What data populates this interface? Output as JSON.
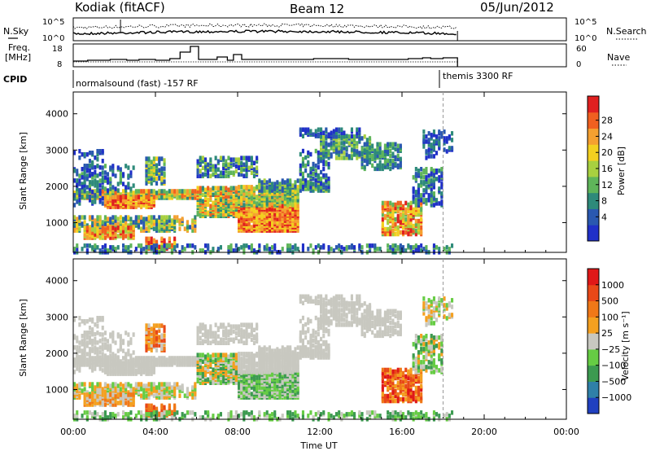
{
  "header": {
    "station": "Kodiak (fitACF)",
    "beam": "Beam 12",
    "date": "05/Jun/2012"
  },
  "side_labels": {
    "nsky": "N.Sky",
    "freq": "Freq.",
    "freq_unit": "[MHz]",
    "cpid": "CPID",
    "nsearch": "N.Search",
    "nave": "Nave"
  },
  "noise_panel": {
    "left_ticks": [
      "10^5",
      "10^0"
    ],
    "right_ticks": [
      "10^5",
      "10^0"
    ]
  },
  "freq_panel": {
    "left_ticks": [
      "18",
      "8"
    ],
    "right_ticks": [
      "60",
      "0"
    ]
  },
  "cpid_panel": {
    "segments": [
      {
        "label": "normalsound (fast) -157 RF",
        "start_hour": 0,
        "end_hour": 18.0
      },
      {
        "label": "themis 3300 RF",
        "start_hour": 18.0,
        "end_hour": 24
      }
    ]
  },
  "chart_data": [
    {
      "type": "heatmap",
      "name": "power",
      "ylabel": "Slant Range [km]",
      "ylim": [
        180,
        4600
      ],
      "yticks": [
        "1000",
        "2000",
        "3000",
        "4000"
      ],
      "xticks": [
        "00:00",
        "04:00",
        "08:00",
        "12:00",
        "16:00",
        "20:00",
        "00:00"
      ],
      "xlim_hours": [
        0,
        24
      ],
      "colorbar": {
        "label": "Power [dB]",
        "ticks": [
          "28",
          "24",
          "20",
          "16",
          "12",
          "8",
          "4"
        ],
        "colors": [
          "#2030c8",
          "#2a58b0",
          "#2e8a7a",
          "#5fb55a",
          "#a8d040",
          "#f3d020",
          "#f5a030",
          "#f06020",
          "#e02020"
        ]
      }
    },
    {
      "type": "heatmap",
      "name": "velocity",
      "ylabel": "Slant Range [km]",
      "ylim": [
        180,
        4600
      ],
      "yticks": [
        "1000",
        "2000",
        "3000",
        "4000"
      ],
      "xticks": [
        "00:00",
        "04:00",
        "08:00",
        "12:00",
        "16:00",
        "20:00",
        "00:00"
      ],
      "xlabel": "Time UT",
      "colorbar": {
        "label": "Velocity [m s⁻¹]",
        "ticks": [
          "1000",
          "500",
          "100",
          "25",
          "−25",
          "−100",
          "−500",
          "−1000"
        ],
        "colors": [
          "#2040c0",
          "#2f80a8",
          "#3c9a50",
          "#66cc44",
          "#c8c8c0",
          "#f4a020",
          "#f07818",
          "#e84818",
          "#e01818"
        ]
      }
    }
  ]
}
